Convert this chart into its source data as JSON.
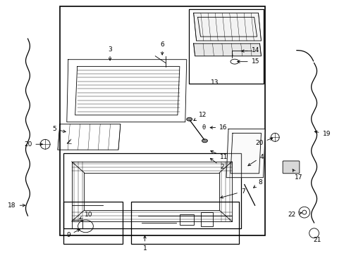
{
  "bg_color": "#ffffff",
  "line_color": "#000000",
  "fig_width": 4.89,
  "fig_height": 3.6,
  "dpi": 100,
  "lw_thin": 0.6,
  "lw_med": 0.9,
  "lw_thick": 1.2,
  "fs": 6.5
}
